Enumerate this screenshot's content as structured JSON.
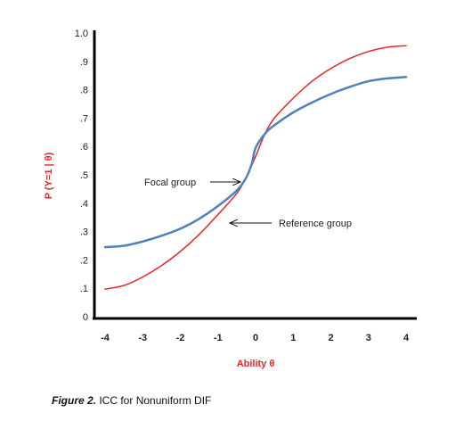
{
  "chart_data": {
    "type": "line",
    "title": "",
    "xlabel": "Ability θ",
    "ylabel": "P (Y=1 | θ)",
    "xlim": [
      -4,
      4
    ],
    "ylim": [
      0,
      1.0
    ],
    "x_ticks": [
      "-4",
      "-3",
      "-2",
      "-1",
      "0",
      "1",
      "2",
      "3",
      "4"
    ],
    "y_ticks": [
      "0",
      ".1",
      ".2",
      ".3",
      ".4",
      ".5",
      ".6",
      ".7",
      ".8",
      ".9",
      "1.0"
    ],
    "grid": false,
    "series": [
      {
        "name": "Reference group",
        "color": "#e8262a",
        "x": [
          -4,
          -3.5,
          -3,
          -2.5,
          -2,
          -1.5,
          -1,
          -0.5,
          -0.25,
          0,
          0.25,
          0.5,
          1,
          1.5,
          2,
          2.5,
          3,
          3.5,
          4
        ],
        "y": [
          0.097,
          0.11,
          0.14,
          0.18,
          0.23,
          0.29,
          0.36,
          0.435,
          0.49,
          0.565,
          0.645,
          0.7,
          0.77,
          0.83,
          0.875,
          0.91,
          0.935,
          0.95,
          0.955
        ]
      },
      {
        "name": "Focal group",
        "color": "#4f81bd",
        "x": [
          -4,
          -3.5,
          -3,
          -2.5,
          -2,
          -1.5,
          -1,
          -0.5,
          -0.25,
          -0.1,
          0,
          0.25,
          0.5,
          1,
          1.5,
          2,
          2.5,
          3,
          3.5,
          4
        ],
        "y": [
          0.245,
          0.25,
          0.265,
          0.285,
          0.31,
          0.345,
          0.39,
          0.445,
          0.49,
          0.54,
          0.595,
          0.645,
          0.675,
          0.72,
          0.755,
          0.785,
          0.81,
          0.83,
          0.84,
          0.845
        ]
      }
    ],
    "annotations": [
      {
        "text": "Focal group",
        "arrow_to_series": "Focal group"
      },
      {
        "text": "Reference group",
        "arrow_to_series": "Reference group"
      }
    ]
  },
  "caption": {
    "lead": "Figure 2.",
    "text": " ICC for Nonuniform  DIF"
  }
}
